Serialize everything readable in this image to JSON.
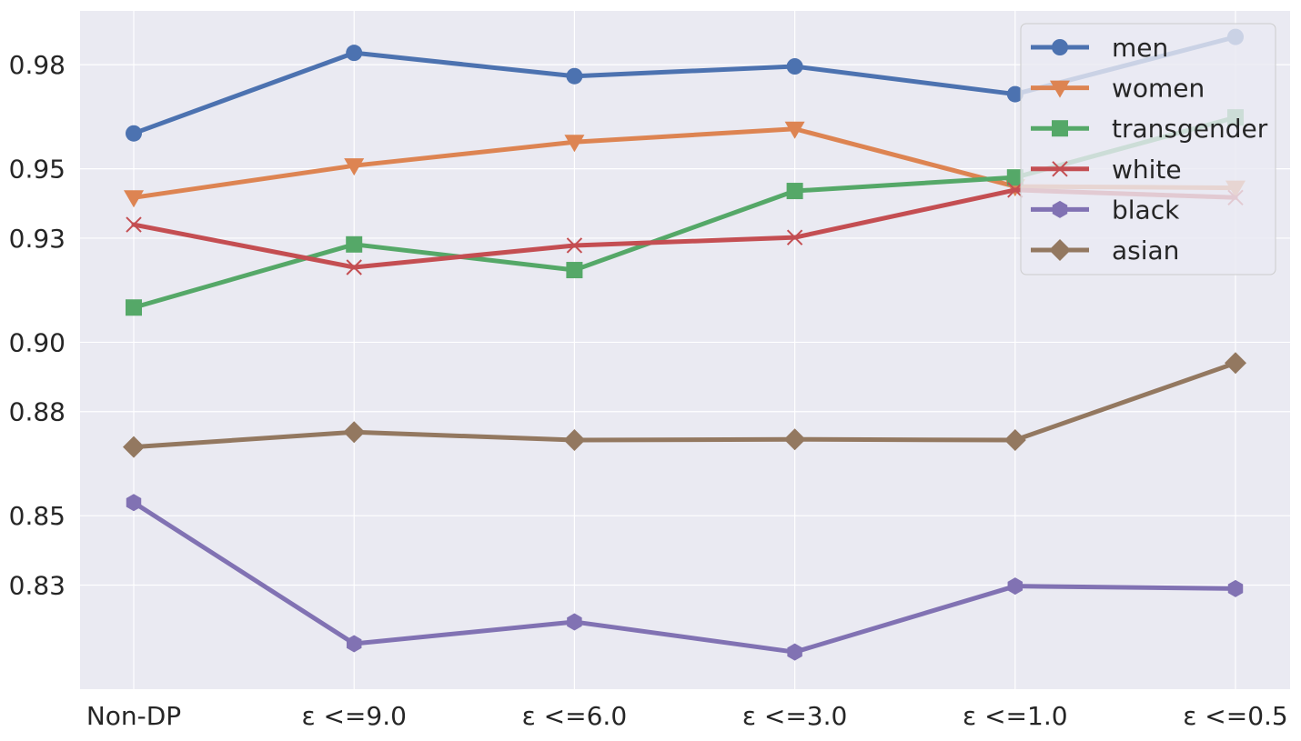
{
  "chart_data": {
    "type": "line",
    "title": "",
    "xlabel": "",
    "ylabel": "",
    "categories": [
      "Non-DP",
      "ε <=9.0",
      "ε <=6.0",
      "ε <=3.0",
      "ε <=1.0",
      "ε <=0.5"
    ],
    "ylim": [
      0.8,
      0.9955
    ],
    "yticks": [
      0.83,
      0.85,
      0.88,
      0.9,
      0.93,
      0.95,
      0.98
    ],
    "ytick_labels": [
      "0.83",
      "0.85",
      "0.88",
      "0.90",
      "0.93",
      "0.95",
      "0.98"
    ],
    "grid": true,
    "legend_position": "top-right",
    "series": [
      {
        "name": "men",
        "color": "#4c72b0",
        "marker": "circle",
        "values": [
          0.9602,
          0.9834,
          0.9767,
          0.9795,
          0.9715,
          0.988
        ]
      },
      {
        "name": "women",
        "color": "#dd8452",
        "marker": "triangle-down",
        "values": [
          0.9417,
          0.9509,
          0.9577,
          0.9615,
          0.9449,
          0.9445
        ]
      },
      {
        "name": "transgender",
        "color": "#55a868",
        "marker": "square",
        "values": [
          0.91,
          0.9282,
          0.9208,
          0.9436,
          0.9475,
          0.9648
        ]
      },
      {
        "name": "white",
        "color": "#c44e52",
        "marker": "x",
        "values": [
          0.9339,
          0.9216,
          0.9279,
          0.9302,
          0.9439,
          0.9417
        ]
      },
      {
        "name": "black",
        "color": "#8172b3",
        "marker": "hexagon",
        "values": [
          0.8538,
          0.8131,
          0.8194,
          0.8107,
          0.8297,
          0.829
        ]
      },
      {
        "name": "asian",
        "color": "#937860",
        "marker": "diamond",
        "values": [
          0.8698,
          0.8741,
          0.8718,
          0.872,
          0.8718,
          0.894
        ]
      }
    ]
  }
}
